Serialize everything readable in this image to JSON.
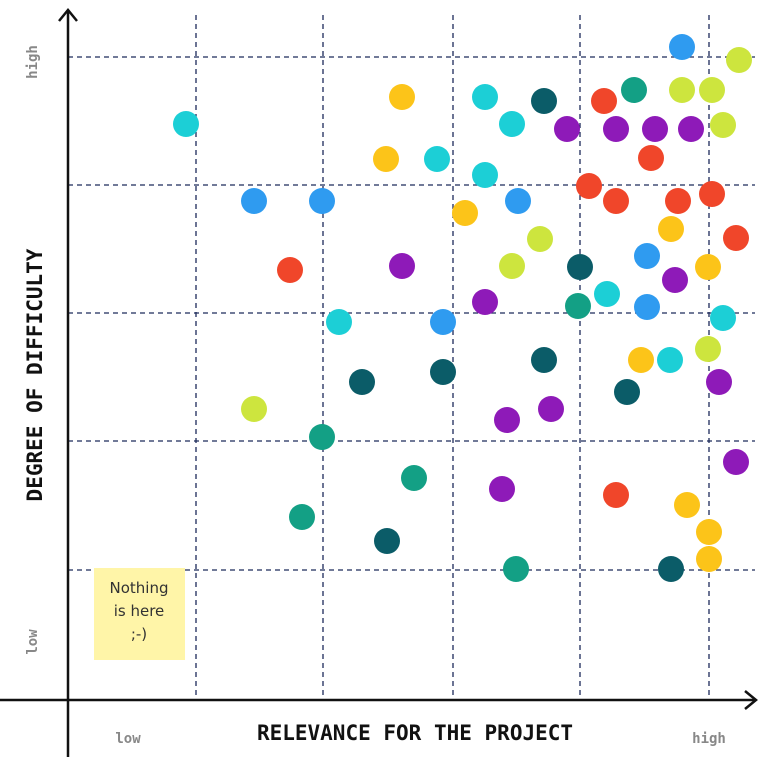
{
  "y_axis": {
    "label": "DEGREE OF DIFFICULTY",
    "high": "high",
    "low": "low"
  },
  "x_axis": {
    "label": "RELEVANCE FOR THE PROJECT",
    "low": "low",
    "high": "high"
  },
  "note": {
    "lines": [
      "Nothing",
      "is here",
      ";-)"
    ]
  }
}
